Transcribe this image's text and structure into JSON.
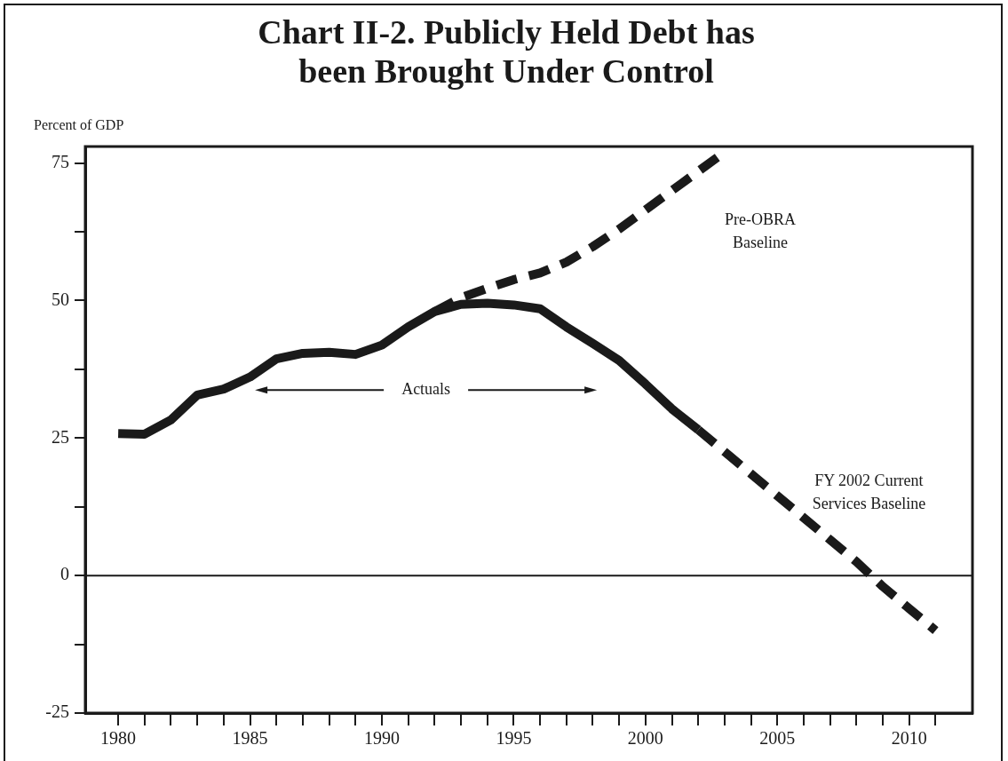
{
  "chart_data": {
    "type": "line",
    "title": "Chart II-2.  Publicly Held Debt has been Brought Under Control",
    "ylabel": "Percent of GDP",
    "series": [
      {
        "color": "#1a1a1a",
        "line_style": "solid",
        "x": [
          1980,
          1981,
          1982,
          1983,
          1984,
          1985,
          1986,
          1987,
          1988,
          1989,
          1990,
          1991,
          1992,
          1993,
          1994,
          1995,
          1996,
          1997,
          1998,
          1999,
          2000,
          2001,
          2002
        ],
        "values": [
          25.8,
          25.7,
          28.3,
          32.8,
          33.9,
          36.1,
          39.4,
          40.4,
          40.6,
          40.2,
          41.9,
          45.2,
          48.0,
          49.3,
          49.5,
          49.2,
          48.5,
          45.2,
          42.2,
          39.1,
          34.8,
          30.3,
          26.5
        ]
      },
      {
        "name": "Pre-OBRA Baseline",
        "color": "#1a1a1a",
        "line_style": "dashed",
        "x": [
          1992,
          1993,
          1994,
          1995,
          1996,
          1997,
          1998,
          1999,
          2000,
          2001,
          2002,
          2003
        ],
        "values": [
          48.0,
          50.5,
          52.2,
          53.8,
          55.0,
          57.0,
          59.8,
          63.0,
          66.5,
          70.0,
          73.5,
          77.0
        ]
      },
      {
        "name": "FY 2002 Current Services Baseline",
        "color": "#1a1a1a",
        "line_style": "dashed",
        "x": [
          2002,
          2003,
          2004,
          2005,
          2006,
          2007,
          2008,
          2009,
          2010,
          2011
        ],
        "values": [
          26.5,
          22.5,
          18.5,
          14.5,
          10.5,
          6.5,
          2.5,
          -2,
          -6,
          -10
        ]
      }
    ],
    "xlim": [
      1978.75,
      2012.4
    ],
    "xticks": [
      1980,
      {
        "value": 1981,
        "label": null
      },
      {
        "value": 1982,
        "label": null
      },
      {
        "value": 1983,
        "label": null
      },
      {
        "value": 1984,
        "label": null
      },
      1985,
      {
        "value": 1986,
        "label": null
      },
      {
        "value": 1987,
        "label": null
      },
      {
        "value": 1988,
        "label": null
      },
      {
        "value": 1989,
        "label": null
      },
      1990,
      {
        "value": 1991,
        "label": null
      },
      {
        "value": 1992,
        "label": null
      },
      {
        "value": 1993,
        "label": null
      },
      {
        "value": 1994,
        "label": null
      },
      1995,
      {
        "value": 1996,
        "label": null
      },
      {
        "value": 1997,
        "label": null
      },
      {
        "value": 1998,
        "label": null
      },
      {
        "value": 1999,
        "label": null
      },
      2000,
      {
        "value": 2001,
        "label": null
      },
      {
        "value": 2002,
        "label": null
      },
      {
        "value": 2003,
        "label": null
      },
      {
        "value": 2004,
        "label": null
      },
      2005,
      {
        "value": 2006,
        "label": null
      },
      {
        "value": 2007,
        "label": null
      },
      {
        "value": 2008,
        "label": null
      },
      {
        "value": 2009,
        "label": null
      },
      2010,
      {
        "value": 2011,
        "label": null
      }
    ],
    "ylim": [
      -25,
      78
    ],
    "yticks": [
      -25,
      {
        "value": -12.5,
        "label": null
      },
      0,
      {
        "value": 12.5,
        "label": null
      },
      25,
      {
        "value": 37.5,
        "label": null
      },
      50,
      {
        "value": 62.5,
        "label": null
      },
      75
    ],
    "ref_lines": [
      {
        "axis": "y",
        "value": 0,
        "color": "#1a1a1a"
      }
    ],
    "annotations": [
      "Actuals"
    ],
    "marker": "none"
  }
}
